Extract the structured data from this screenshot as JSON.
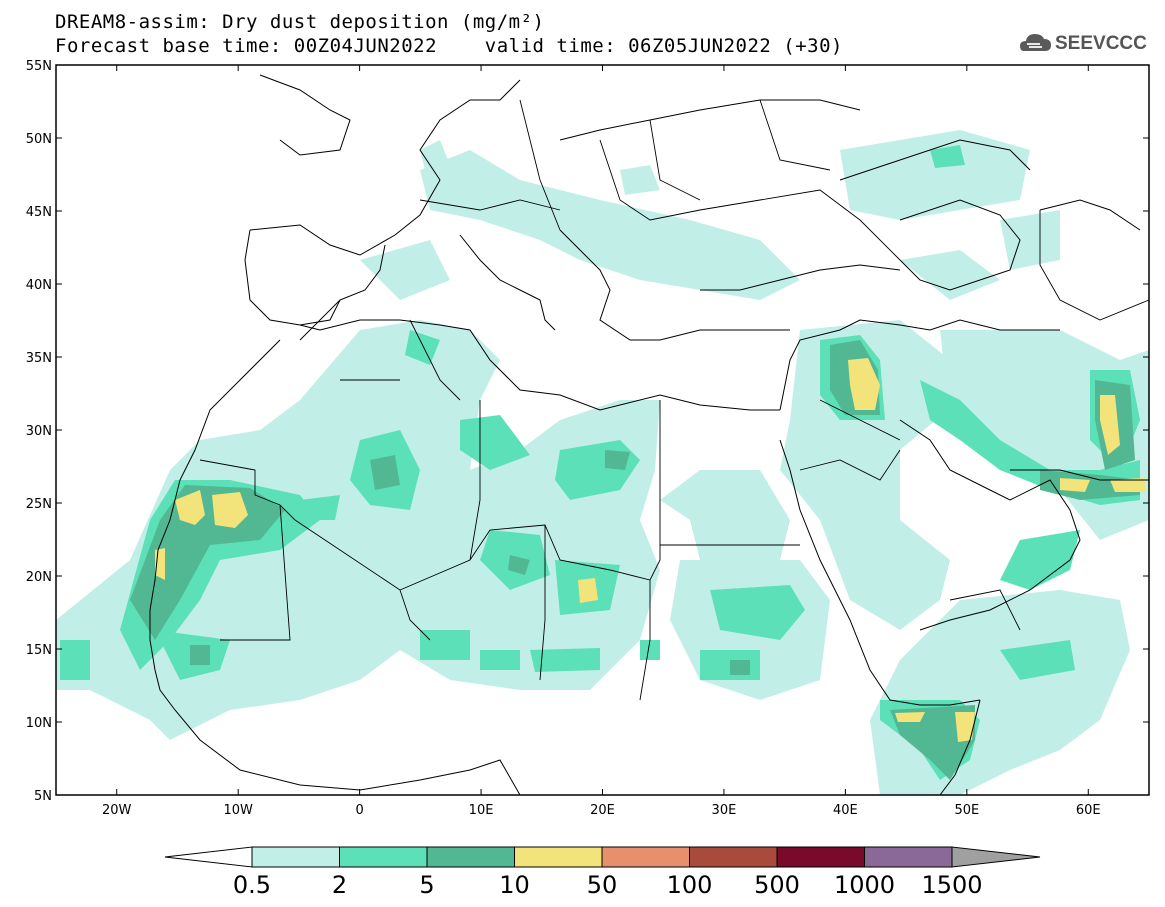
{
  "title": {
    "line1": "DREAM8-assim: Dry dust deposition (mg/m²)",
    "line2": "Forecast base time: 00Z04JUN2022    valid time: 06Z05JUN2022 (+30)"
  },
  "logo": {
    "icon": "cloud-icon",
    "text": "SEEVCCC",
    "color": "#555555"
  },
  "map": {
    "lon_range": [
      -25,
      65
    ],
    "lat_range": [
      5,
      55
    ],
    "lat_ticks": [
      "5N",
      "10N",
      "15N",
      "20N",
      "25N",
      "30N",
      "35N",
      "40N",
      "45N",
      "50N",
      "55N"
    ],
    "lon_ticks": [
      "20W",
      "10W",
      "0",
      "10E",
      "20E",
      "30E",
      "40E",
      "50E",
      "60E"
    ]
  },
  "colorbar": {
    "labels": [
      "0.5",
      "2",
      "5",
      "10",
      "50",
      "100",
      "500",
      "1000",
      "1500"
    ],
    "colors": [
      "#c1efe8",
      "#5ce0b8",
      "#52b894",
      "#f2e37a",
      "#e88f6c",
      "#a84b3c",
      "#7a0a2c",
      "#8a6898",
      "#a0a0a0"
    ]
  }
}
